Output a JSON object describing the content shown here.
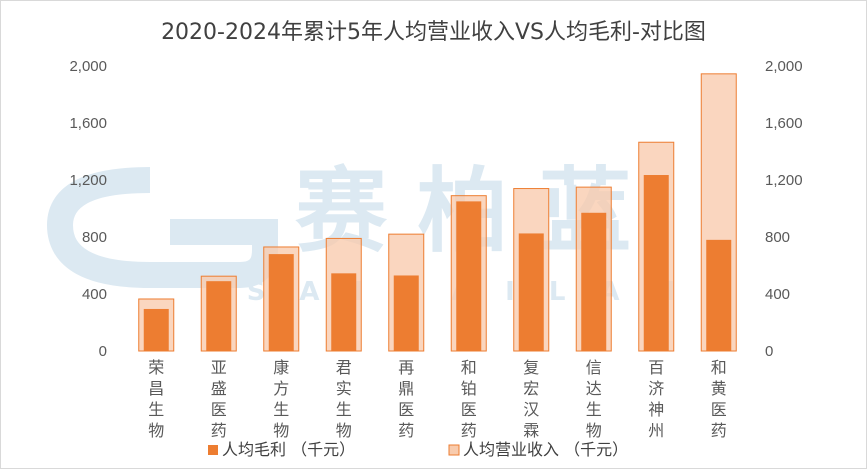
{
  "chart_data": {
    "type": "bar",
    "title": "2020-2024年累计5年人均营业收入VS人均毛利-对比图",
    "categories": [
      "荣昌生物",
      "亚盛医药",
      "康方生物",
      "君实生物",
      "再鼎医药",
      "和铂医药",
      "复宏汉霖",
      "信达生物",
      "百济神州",
      "和黄医药"
    ],
    "series": [
      {
        "name": "人均毛利 （千元）",
        "values": [
          295,
          490,
          680,
          545,
          530,
          1050,
          825,
          970,
          1235,
          780
        ],
        "color": "#ed7d31"
      },
      {
        "name": "人均营业收入 （千元）",
        "values": [
          365,
          525,
          730,
          790,
          820,
          1090,
          1140,
          1150,
          1465,
          1945
        ],
        "color": "#f8cbad"
      }
    ],
    "ylim": [
      0,
      2000
    ],
    "y_ticks": [
      "0",
      "400",
      "800",
      "1,200",
      "1,600",
      "2,000"
    ],
    "y_tick_values": [
      0,
      400,
      800,
      1200,
      1600,
      2000
    ],
    "secondary_axis": true,
    "grid": false,
    "legend_position": "bottom"
  },
  "watermark": {
    "text": "赛柏蓝",
    "subtext": "SAIBAILAN",
    "color": "#dce9f2"
  }
}
